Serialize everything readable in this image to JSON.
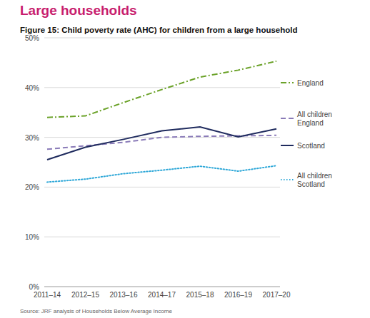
{
  "chart_data": {
    "type": "line",
    "title": "Large households",
    "subtitle": "Figure 15: Child poverty rate (AHC) for children from a large household",
    "source": "Source: JRF analysis of Households Below Average Income",
    "categories": [
      "2011–14",
      "2012–15",
      "2013–16",
      "2014–17",
      "2015–18",
      "2016–19",
      "2017–20"
    ],
    "series": [
      {
        "name": "England",
        "color": "#6ba229",
        "line_style": "dashdot",
        "values": [
          34,
          34.3,
          37,
          39.6,
          42.1,
          43.5,
          45.3
        ]
      },
      {
        "name": "All children England",
        "color": "#8a7bb8",
        "line_style": "dashed",
        "values": [
          27.6,
          28.3,
          29,
          30,
          30.2,
          30.3,
          30.4
        ]
      },
      {
        "name": "Scotland",
        "color": "#1f2b5e",
        "line_style": "solid",
        "values": [
          25.5,
          28,
          29.6,
          31.3,
          32.1,
          30.1,
          31.7
        ]
      },
      {
        "name": "All children Scotland",
        "color": "#2fa8d8",
        "line_style": "dotted",
        "values": [
          21,
          21.6,
          22.7,
          23.4,
          24.2,
          23.2,
          24.3
        ]
      }
    ],
    "ylim": [
      0,
      50
    ],
    "yticks": [
      {
        "value": 0,
        "label": "0%"
      },
      {
        "value": 10,
        "label": "10%"
      },
      {
        "value": 20,
        "label": "20%"
      },
      {
        "value": 30,
        "label": "30%"
      },
      {
        "value": 40,
        "label": "40%"
      },
      {
        "value": 50,
        "label": "50%"
      }
    ],
    "grid": true,
    "legend": "right"
  }
}
